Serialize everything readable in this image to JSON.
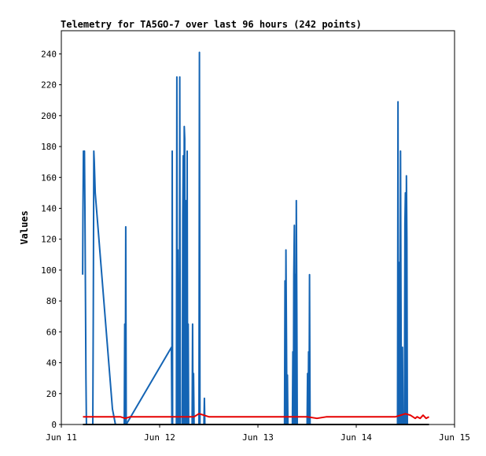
{
  "chart_data": {
    "type": "line",
    "title": "Telemetry for TA5GO-7 over last 96 hours (242 points)",
    "xlabel": "",
    "ylabel": "Values",
    "x_ticks": [
      "Jun 11",
      "Jun 12",
      "Jun 13",
      "Jun 14",
      "Jun 15"
    ],
    "y_ticks": [
      0,
      20,
      40,
      60,
      80,
      100,
      120,
      140,
      160,
      180,
      200,
      220,
      240
    ],
    "xlim_days": [
      0,
      4
    ],
    "ylim": [
      0,
      255
    ],
    "grid": false,
    "legend": "none",
    "series": [
      {
        "color": "#1464b4",
        "points": [
          [
            0.217,
            97
          ],
          [
            0.22,
            137
          ],
          [
            0.225,
            177
          ],
          [
            0.23,
            160
          ],
          [
            0.235,
            177
          ],
          [
            0.24,
            140
          ],
          [
            0.245,
            90
          ],
          [
            0.25,
            30
          ],
          [
            0.255,
            0
          ],
          [
            0.32,
            0
          ],
          [
            0.325,
            70
          ],
          [
            0.33,
            177
          ],
          [
            0.335,
            170
          ],
          [
            0.34,
            160
          ],
          [
            0.345,
            150
          ],
          [
            0.52,
            10
          ],
          [
            0.55,
            0
          ],
          [
            0.64,
            0
          ],
          [
            0.645,
            65
          ],
          [
            0.65,
            0
          ],
          [
            0.655,
            128
          ],
          [
            0.66,
            0
          ],
          [
            0.66,
            0
          ],
          [
            1.12,
            50
          ],
          [
            1.125,
            0
          ],
          [
            1.128,
            177
          ],
          [
            1.132,
            0
          ],
          [
            1.17,
            0
          ],
          [
            1.175,
            225
          ],
          [
            1.18,
            0
          ],
          [
            1.185,
            113
          ],
          [
            1.19,
            0
          ],
          [
            1.2,
            0
          ],
          [
            1.205,
            225
          ],
          [
            1.21,
            0
          ],
          [
            1.23,
            0
          ],
          [
            1.235,
            135
          ],
          [
            1.24,
            174
          ],
          [
            1.245,
            0
          ],
          [
            1.25,
            193
          ],
          [
            1.255,
            185
          ],
          [
            1.26,
            0
          ],
          [
            1.265,
            145
          ],
          [
            1.27,
            90
          ],
          [
            1.275,
            0
          ],
          [
            1.28,
            177
          ],
          [
            1.285,
            0
          ],
          [
            1.29,
            65
          ],
          [
            1.295,
            0
          ],
          [
            1.33,
            0
          ],
          [
            1.335,
            65
          ],
          [
            1.34,
            0
          ],
          [
            1.345,
            33
          ],
          [
            1.35,
            0
          ],
          [
            1.4,
            0
          ],
          [
            1.405,
            241
          ],
          [
            1.41,
            0
          ],
          [
            1.45,
            0
          ],
          [
            1.455,
            17
          ],
          [
            1.46,
            0
          ],
          [
            2.27,
            0
          ],
          [
            2.275,
            93
          ],
          [
            2.28,
            0
          ],
          [
            2.285,
            113
          ],
          [
            2.29,
            55
          ],
          [
            2.295,
            0
          ],
          [
            2.3,
            32
          ],
          [
            2.305,
            0
          ],
          [
            2.35,
            0
          ],
          [
            2.355,
            47
          ],
          [
            2.36,
            0
          ],
          [
            2.365,
            97
          ],
          [
            2.37,
            129
          ],
          [
            2.375,
            0
          ],
          [
            2.38,
            97
          ],
          [
            2.385,
            0
          ],
          [
            2.39,
            145
          ],
          [
            2.395,
            80
          ],
          [
            2.4,
            0
          ],
          [
            2.5,
            0
          ],
          [
            2.505,
            33
          ],
          [
            2.51,
            0
          ],
          [
            2.515,
            47
          ],
          [
            2.52,
            0
          ],
          [
            2.525,
            97
          ],
          [
            2.53,
            0
          ],
          [
            3.42,
            0
          ],
          [
            3.425,
            209
          ],
          [
            3.43,
            0
          ],
          [
            3.435,
            105
          ],
          [
            3.44,
            89
          ],
          [
            3.445,
            0
          ],
          [
            3.45,
            177
          ],
          [
            3.455,
            80
          ],
          [
            3.46,
            0
          ],
          [
            3.465,
            30
          ],
          [
            3.47,
            50
          ],
          [
            3.475,
            0
          ],
          [
            3.49,
            0
          ],
          [
            3.495,
            130
          ],
          [
            3.5,
            150
          ],
          [
            3.505,
            0
          ],
          [
            3.51,
            161
          ],
          [
            3.515,
            120
          ],
          [
            3.52,
            0
          ],
          [
            3.53,
            0
          ]
        ]
      },
      {
        "color": "#e60000",
        "points": [
          [
            0.22,
            5
          ],
          [
            0.6,
            5
          ],
          [
            0.65,
            4
          ],
          [
            0.7,
            5
          ],
          [
            1.0,
            5
          ],
          [
            1.35,
            5
          ],
          [
            1.4,
            7
          ],
          [
            1.45,
            6
          ],
          [
            1.5,
            5
          ],
          [
            2.5,
            5
          ],
          [
            2.6,
            4
          ],
          [
            2.7,
            5
          ],
          [
            3.4,
            5
          ],
          [
            3.5,
            7
          ],
          [
            3.55,
            6
          ],
          [
            3.6,
            4
          ],
          [
            3.62,
            5
          ],
          [
            3.65,
            4
          ],
          [
            3.68,
            6
          ],
          [
            3.71,
            4
          ],
          [
            3.74,
            5
          ]
        ]
      },
      {
        "color": "#000000",
        "points": [
          [
            0.22,
            0
          ],
          [
            3.74,
            0
          ]
        ]
      }
    ]
  }
}
